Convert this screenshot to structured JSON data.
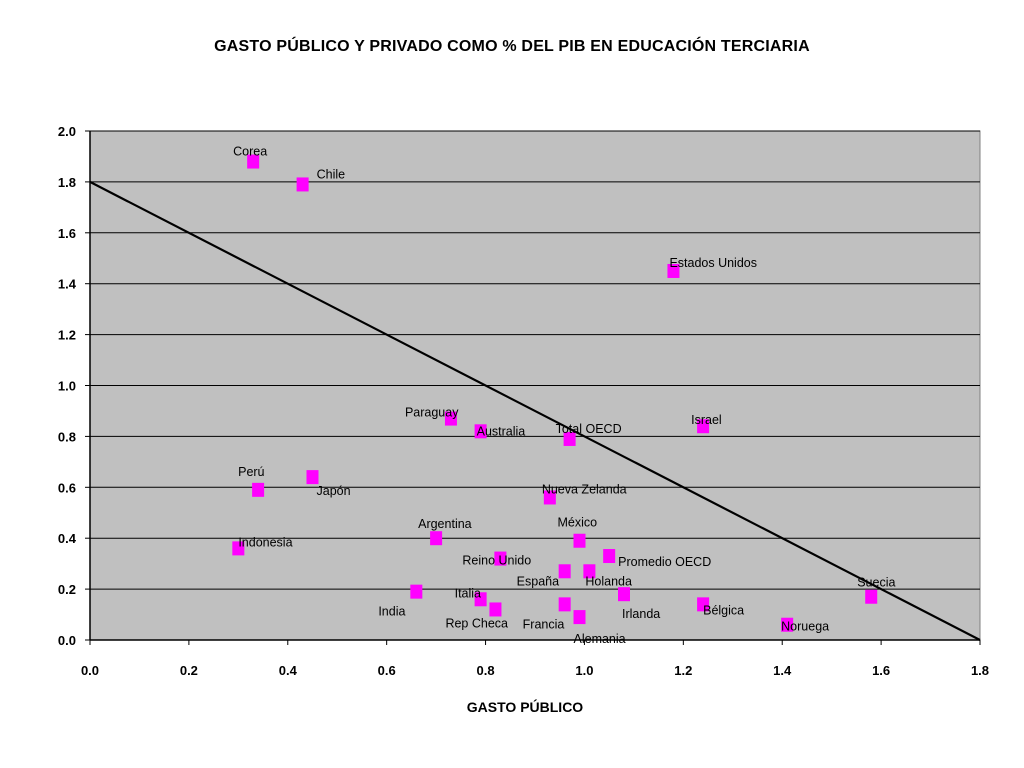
{
  "chart_data": {
    "type": "scatter",
    "title": "GASTO PÚBLICO Y PRIVADO COMO % DEL PIB EN EDUCACIÓN TERCIARIA",
    "xlabel": "GASTO PÚBLICO",
    "ylabel": "",
    "xlim": [
      0,
      1.8
    ],
    "ylim": [
      0,
      2.0
    ],
    "xticks": [
      "0.0",
      "0.2",
      "0.4",
      "0.6",
      "0.8",
      "1.0",
      "1.2",
      "1.4",
      "1.6",
      "1.8"
    ],
    "yticks": [
      "0.0",
      "0.2",
      "0.4",
      "0.6",
      "0.8",
      "1.0",
      "1.2",
      "1.4",
      "1.6",
      "1.8",
      "2.0"
    ],
    "grid": "horizontal",
    "background": "#c0c0c0",
    "marker_color": "#ff00ff",
    "line_color": "#000000",
    "reference_line": {
      "x": [
        0,
        1.8
      ],
      "y": [
        1.8,
        0
      ]
    },
    "points": [
      {
        "label": "Corea",
        "x": 0.33,
        "y": 1.88
      },
      {
        "label": "Chile",
        "x": 0.43,
        "y": 1.79
      },
      {
        "label": "Estados Unidos",
        "x": 1.18,
        "y": 1.45
      },
      {
        "label": "Paraguay",
        "x": 0.73,
        "y": 0.87
      },
      {
        "label": "Australia",
        "x": 0.79,
        "y": 0.82
      },
      {
        "label": "Total OECD",
        "x": 0.97,
        "y": 0.79
      },
      {
        "label": "Israel",
        "x": 1.24,
        "y": 0.84
      },
      {
        "label": "Perú",
        "x": 0.34,
        "y": 0.59
      },
      {
        "label": "Japón",
        "x": 0.45,
        "y": 0.64
      },
      {
        "label": "Nueva Zelanda",
        "x": 0.93,
        "y": 0.56
      },
      {
        "label": "Indonesia",
        "x": 0.3,
        "y": 0.36
      },
      {
        "label": "Argentina",
        "x": 0.7,
        "y": 0.4
      },
      {
        "label": "México",
        "x": 0.99,
        "y": 0.39
      },
      {
        "label": "Reino Unido",
        "x": 0.83,
        "y": 0.32
      },
      {
        "label": "Promedio OECD",
        "x": 1.05,
        "y": 0.33
      },
      {
        "label": "España",
        "x": 0.96,
        "y": 0.27
      },
      {
        "label": "Holanda",
        "x": 1.01,
        "y": 0.27
      },
      {
        "label": "Suecia",
        "x": 1.58,
        "y": 0.17
      },
      {
        "label": "India",
        "x": 0.66,
        "y": 0.19
      },
      {
        "label": "Italia",
        "x": 0.79,
        "y": 0.16
      },
      {
        "label": "Irlanda",
        "x": 1.08,
        "y": 0.18
      },
      {
        "label": "Bélgica",
        "x": 1.24,
        "y": 0.14
      },
      {
        "label": "Rep Checa",
        "x": 0.82,
        "y": 0.12
      },
      {
        "label": "Francia",
        "x": 0.96,
        "y": 0.14
      },
      {
        "label": "Alemania",
        "x": 0.99,
        "y": 0.09
      },
      {
        "label": "Noruega",
        "x": 1.41,
        "y": 0.06
      }
    ]
  }
}
